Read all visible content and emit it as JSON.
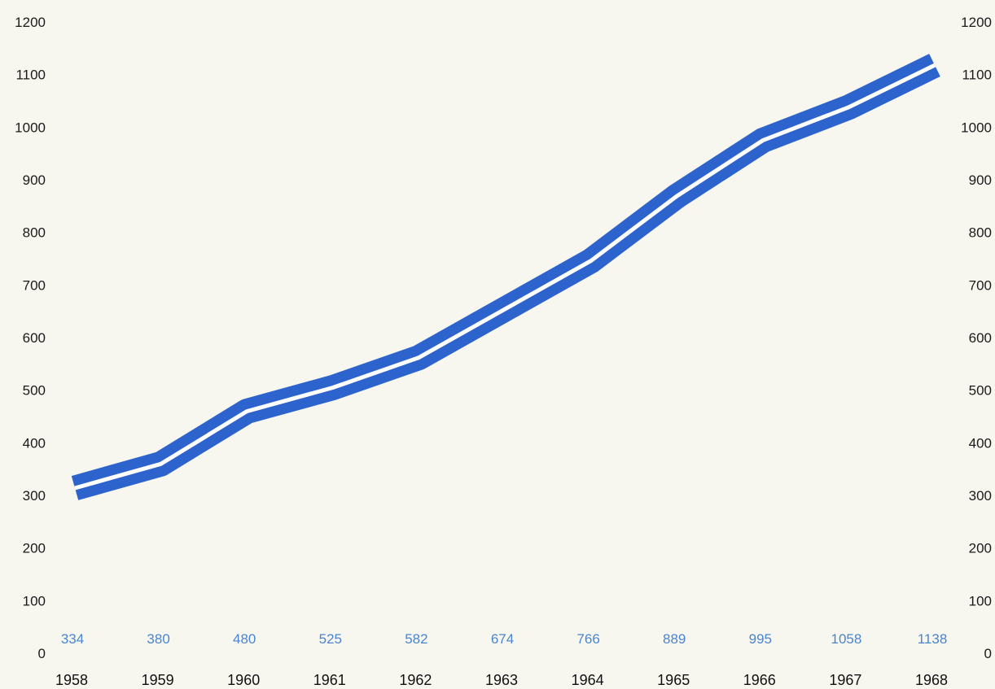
{
  "chart_data": {
    "type": "line",
    "x": [
      "1958",
      "1959",
      "1960",
      "1961",
      "1962",
      "1963",
      "1964",
      "1965",
      "1966",
      "1967",
      "1968"
    ],
    "series": [
      {
        "values": [
          334,
          380,
          480,
          525,
          582,
          674,
          766,
          889,
          995,
          1058,
          1138
        ]
      }
    ],
    "data_labels": [
      "334",
      "380",
      "480",
      "525",
      "582",
      "674",
      "766",
      "889",
      "995",
      "1058",
      "1138"
    ],
    "y_ticks": [
      "0",
      "100",
      "200",
      "300",
      "400",
      "500",
      "600",
      "700",
      "800",
      "900",
      "1000",
      "1100",
      "1200"
    ],
    "ylim": [
      0,
      1200
    ],
    "y_axis_both_sides": true,
    "line_style": "double band with white center",
    "grid": false,
    "colors": {
      "line": "#2d63cc",
      "line_center": "#ffffff",
      "data_label": "#4a85cf",
      "tick_label": "#1a1a1a",
      "background": "#f7f7ef"
    }
  }
}
